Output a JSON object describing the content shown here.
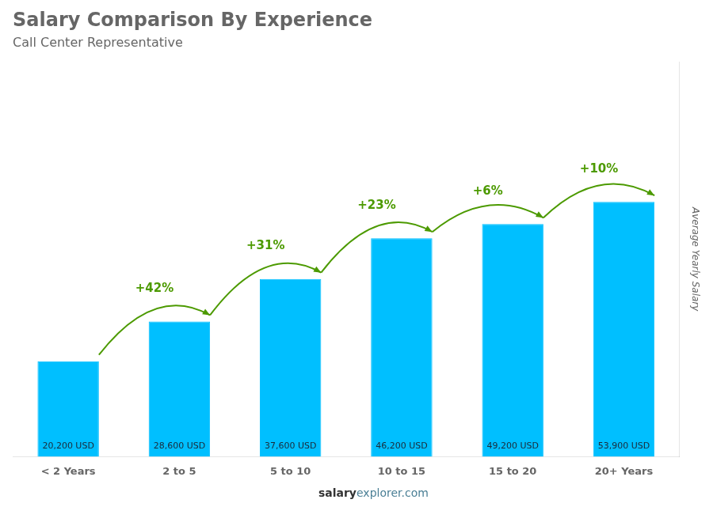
{
  "chart_data": {
    "type": "bar",
    "title": "Salary Comparison By Experience",
    "subtitle": "Call Center Representative",
    "y_label": "Average Yearly Salary",
    "footer": [
      "salary",
      "explorer.com"
    ],
    "categories": [
      "< 2 Years",
      "2 to 5",
      "5 to 10",
      "10 to 15",
      "15 to 20",
      "20+ Years"
    ],
    "values": [
      20200,
      28600,
      37600,
      46200,
      49200,
      53900
    ],
    "value_labels": [
      "20,200 USD",
      "28,600 USD",
      "37,600 USD",
      "46,200 USD",
      "49,200 USD",
      "53,900 USD"
    ],
    "data_labels": true,
    "color": "#00bfff",
    "annotations": [
      {
        "text": "+42%",
        "from": "< 2 Years",
        "to": "2 to 5"
      },
      {
        "text": "+31%",
        "from": "2 to 5",
        "to": "5 to 10"
      },
      {
        "text": "+23%",
        "from": "5 to 10",
        "to": "10 to 15"
      },
      {
        "text": "+6%",
        "from": "10 to 15",
        "to": "15 to 20"
      },
      {
        "text": "+10%",
        "from": "15 to 20",
        "to": "20+ Years"
      }
    ],
    "ylim": [
      0,
      83545
    ],
    "tick_labels": "x",
    "grid": false
  }
}
